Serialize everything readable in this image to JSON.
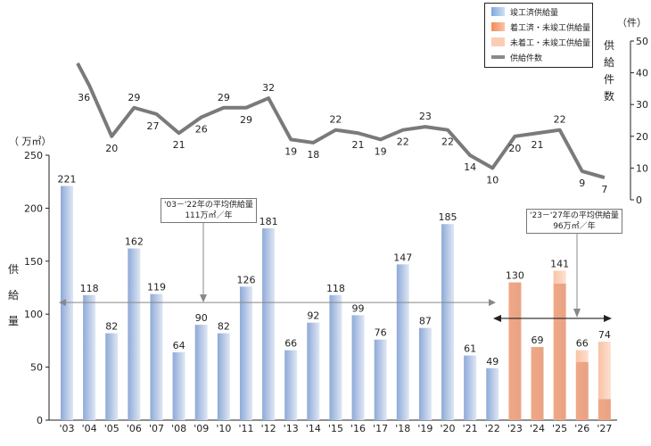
{
  "chart_data": {
    "type": "bar+line",
    "categories": [
      "'03",
      "'04",
      "'05",
      "'06",
      "'07",
      "'08",
      "'09",
      "'10",
      "'11",
      "'12",
      "'13",
      "'14",
      "'15",
      "'16",
      "'17",
      "'18",
      "'19",
      "'20",
      "'21",
      "'22",
      "'23",
      "'24",
      "'25",
      "'26",
      "'27"
    ],
    "bar_series": [
      {
        "name": "竣工済供給量",
        "values": [
          221,
          118,
          82,
          162,
          119,
          64,
          90,
          82,
          126,
          181,
          66,
          92,
          118,
          99,
          76,
          147,
          87,
          185,
          61,
          49,
          null,
          null,
          null,
          null,
          null
        ],
        "color": "#9db6dc"
      },
      {
        "name": "着工済・未竣工供給量",
        "values": [
          null,
          null,
          null,
          null,
          null,
          null,
          null,
          null,
          null,
          null,
          null,
          null,
          null,
          null,
          null,
          null,
          null,
          null,
          null,
          null,
          130,
          69,
          129,
          55,
          20
        ],
        "color": "#eda583"
      },
      {
        "name": "未着工・未竣工供給量",
        "values": [
          null,
          null,
          null,
          null,
          null,
          null,
          null,
          null,
          null,
          null,
          null,
          null,
          null,
          null,
          null,
          null,
          null,
          null,
          null,
          null,
          0,
          0,
          12,
          11,
          54
        ],
        "color": "#fbcdb5"
      }
    ],
    "bar_totals": [
      221,
      118,
      82,
      162,
      119,
      64,
      90,
      82,
      126,
      181,
      66,
      92,
      118,
      99,
      76,
      147,
      87,
      185,
      61,
      49,
      130,
      69,
      141,
      66,
      74
    ],
    "line_series": {
      "name": "供給件数",
      "values": [
        43,
        36,
        20,
        29,
        27,
        21,
        26,
        29,
        29,
        32,
        19,
        18,
        22,
        21,
        19,
        22,
        23,
        22,
        14,
        10,
        20,
        21,
        22,
        9,
        7
      ],
      "labels": [
        null,
        "36",
        "20",
        "29",
        "27",
        "21",
        "26",
        "29",
        "29",
        "32",
        "19",
        "18",
        "22",
        "21",
        "19",
        "22",
        "23",
        "22",
        "14",
        "10",
        "20",
        "21",
        "22",
        "9",
        "7"
      ],
      "color": "#7a7a7a"
    },
    "y_left": {
      "label": "供給量",
      "unit": "（ 万㎡）",
      "ylim": [
        0,
        250
      ],
      "ticks": [
        "0",
        "50",
        "100",
        "150",
        "200",
        "250"
      ]
    },
    "y_right": {
      "label": "供給件数",
      "unit": "（件）",
      "ylim": [
        0,
        50
      ],
      "ticks": [
        "0",
        "10",
        "20",
        "30",
        "40",
        "50"
      ]
    },
    "legend_position": "top-right",
    "annotations": [
      {
        "line1": "'03－'22年の平均供給量",
        "line2": "111万㎡／年",
        "value": 111
      },
      {
        "line1": "'23－'27年の平均供給量",
        "line2": "96万㎡／年",
        "value": 96
      }
    ]
  }
}
